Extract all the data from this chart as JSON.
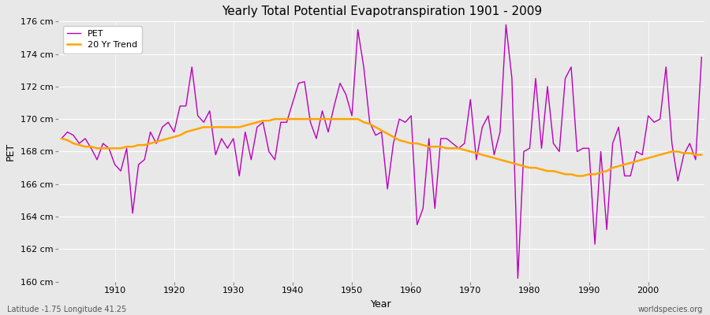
{
  "title": "Yearly Total Potential Evapotranspiration 1901 - 2009",
  "xlabel": "Year",
  "ylabel": "PET",
  "subtitle_left": "Latitude -1.75 Longitude 41.25",
  "subtitle_right": "worldspecies.org",
  "pet_color": "#bb00bb",
  "trend_color": "#ffa500",
  "bg_color": "#e8e8e8",
  "years": [
    1901,
    1902,
    1903,
    1904,
    1905,
    1906,
    1907,
    1908,
    1909,
    1910,
    1911,
    1912,
    1913,
    1914,
    1915,
    1916,
    1917,
    1918,
    1919,
    1920,
    1921,
    1922,
    1923,
    1924,
    1925,
    1926,
    1927,
    1928,
    1929,
    1930,
    1931,
    1932,
    1933,
    1934,
    1935,
    1936,
    1937,
    1938,
    1939,
    1940,
    1941,
    1942,
    1943,
    1944,
    1945,
    1946,
    1947,
    1948,
    1949,
    1950,
    1951,
    1952,
    1953,
    1954,
    1955,
    1956,
    1957,
    1958,
    1959,
    1960,
    1961,
    1962,
    1963,
    1964,
    1965,
    1966,
    1967,
    1968,
    1969,
    1970,
    1971,
    1972,
    1973,
    1974,
    1975,
    1976,
    1977,
    1978,
    1979,
    1980,
    1981,
    1982,
    1983,
    1984,
    1985,
    1986,
    1987,
    1988,
    1989,
    1990,
    1991,
    1992,
    1993,
    1994,
    1995,
    1996,
    1997,
    1998,
    1999,
    2000,
    2001,
    2002,
    2003,
    2004,
    2005,
    2006,
    2007,
    2008,
    2009
  ],
  "pet_values": [
    168.8,
    169.2,
    169.0,
    168.5,
    168.8,
    168.2,
    167.5,
    168.5,
    168.2,
    167.2,
    166.8,
    168.2,
    164.2,
    167.2,
    167.5,
    169.2,
    168.5,
    169.5,
    169.8,
    169.2,
    170.8,
    170.8,
    173.2,
    170.2,
    169.8,
    170.5,
    167.8,
    168.8,
    168.2,
    168.8,
    166.5,
    169.2,
    167.5,
    169.5,
    169.8,
    168.0,
    167.5,
    169.8,
    169.8,
    171.0,
    172.2,
    172.3,
    169.8,
    168.8,
    170.5,
    169.2,
    170.8,
    172.2,
    171.5,
    170.2,
    175.5,
    173.2,
    169.8,
    169.0,
    169.2,
    165.7,
    168.5,
    170.0,
    169.8,
    170.2,
    163.5,
    164.5,
    168.8,
    164.5,
    168.8,
    168.8,
    168.5,
    168.2,
    168.5,
    171.2,
    167.5,
    169.5,
    170.2,
    167.8,
    169.2,
    175.8,
    172.5,
    160.2,
    168.0,
    168.2,
    172.5,
    168.2,
    172.0,
    168.5,
    168.0,
    172.5,
    173.2,
    168.0,
    168.2,
    168.2,
    162.3,
    168.0,
    163.2,
    168.5,
    169.5,
    166.5,
    166.5,
    168.0,
    167.8,
    170.2,
    169.8,
    170.0,
    173.2,
    168.5,
    166.2,
    167.8,
    168.5,
    167.5,
    173.8
  ],
  "trend_values": [
    168.8,
    168.7,
    168.5,
    168.4,
    168.3,
    168.3,
    168.2,
    168.2,
    168.2,
    168.2,
    168.2,
    168.3,
    168.3,
    168.4,
    168.4,
    168.5,
    168.6,
    168.7,
    168.8,
    168.9,
    169.0,
    169.2,
    169.3,
    169.4,
    169.5,
    169.5,
    169.5,
    169.5,
    169.5,
    169.5,
    169.5,
    169.6,
    169.7,
    169.8,
    169.9,
    169.9,
    170.0,
    170.0,
    170.0,
    170.0,
    170.0,
    170.0,
    170.0,
    170.0,
    170.0,
    170.0,
    170.0,
    170.0,
    170.0,
    170.0,
    170.0,
    169.8,
    169.7,
    169.5,
    169.3,
    169.1,
    168.9,
    168.7,
    168.6,
    168.5,
    168.5,
    168.4,
    168.3,
    168.3,
    168.3,
    168.2,
    168.2,
    168.2,
    168.1,
    168.0,
    167.9,
    167.8,
    167.7,
    167.6,
    167.5,
    167.4,
    167.3,
    167.2,
    167.1,
    167.0,
    167.0,
    166.9,
    166.8,
    166.8,
    166.7,
    166.6,
    166.6,
    166.5,
    166.5,
    166.6,
    166.6,
    166.7,
    166.8,
    167.0,
    167.1,
    167.2,
    167.3,
    167.4,
    167.5,
    167.6,
    167.7,
    167.8,
    167.9,
    168.0,
    168.0,
    167.9,
    167.9,
    167.8,
    167.8
  ],
  "ylim": [
    160,
    176
  ],
  "yticks": [
    160,
    162,
    164,
    166,
    168,
    170,
    172,
    174,
    176
  ],
  "ytick_labels": [
    "160 cm",
    "162 cm",
    "164 cm",
    "166 cm",
    "168 cm",
    "170 cm",
    "172 cm",
    "174 cm",
    "176 cm"
  ],
  "xticks": [
    1910,
    1920,
    1930,
    1940,
    1950,
    1960,
    1970,
    1980,
    1990,
    2000
  ],
  "figsize": [
    9.0,
    4.0
  ],
  "dpi": 100
}
